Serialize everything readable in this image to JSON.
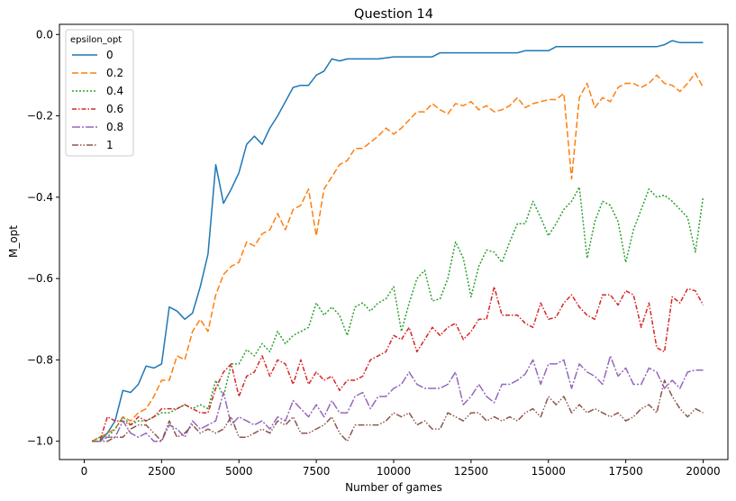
{
  "chart_data": {
    "type": "line",
    "title": "Question 14",
    "xlabel": "Number of games",
    "ylabel": "M_opt",
    "xlim": [
      -800,
      20800
    ],
    "ylim": [
      -1.045,
      0.025
    ],
    "xticks": [
      0,
      2500,
      5000,
      7500,
      10000,
      12500,
      15000,
      17500,
      20000
    ],
    "yticks": [
      0.0,
      -0.2,
      -0.4,
      -0.6,
      -0.8,
      -1.0
    ],
    "xtick_labels": [
      "0",
      "2500",
      "5000",
      "7500",
      "10000",
      "12500",
      "15000",
      "17500",
      "20000"
    ],
    "ytick_labels": [
      "0.0",
      "−0.2",
      "−0.4",
      "−0.6",
      "−0.8",
      "−1.0"
    ],
    "grid": false,
    "legend": {
      "title": "epsilon_opt",
      "placement": "top-left"
    },
    "series": [
      {
        "name": "0",
        "color": "#1f77b4",
        "dash": "solid",
        "x": [
          250,
          500,
          750,
          1000,
          1250,
          1500,
          1750,
          2000,
          2250,
          2500,
          2750,
          3000,
          3250,
          3500,
          3750,
          4000,
          4250,
          4500,
          4750,
          5000,
          5250,
          5500,
          5750,
          6000,
          6250,
          6500,
          6750,
          7000,
          7250,
          7500,
          7750,
          8000,
          8250,
          8500,
          9000,
          9500,
          10000,
          10500,
          11000,
          11250,
          11500,
          12000,
          12500,
          13000,
          13500,
          14000,
          14250,
          14500,
          15000,
          15250,
          15500,
          16000,
          16500,
          17000,
          17500,
          18000,
          18500,
          18750,
          19000,
          19250,
          19500,
          20000
        ],
        "y": [
          -1.0,
          -1.0,
          -0.98,
          -0.95,
          -0.875,
          -0.88,
          -0.86,
          -0.815,
          -0.82,
          -0.81,
          -0.67,
          -0.68,
          -0.7,
          -0.685,
          -0.62,
          -0.54,
          -0.32,
          -0.415,
          -0.38,
          -0.34,
          -0.27,
          -0.25,
          -0.27,
          -0.23,
          -0.2,
          -0.165,
          -0.13,
          -0.125,
          -0.125,
          -0.1,
          -0.09,
          -0.06,
          -0.065,
          -0.06,
          -0.06,
          -0.06,
          -0.055,
          -0.055,
          -0.055,
          -0.055,
          -0.045,
          -0.045,
          -0.045,
          -0.045,
          -0.045,
          -0.045,
          -0.04,
          -0.04,
          -0.04,
          -0.03,
          -0.03,
          -0.03,
          -0.03,
          -0.03,
          -0.03,
          -0.03,
          -0.03,
          -0.025,
          -0.015,
          -0.02,
          -0.02,
          -0.02
        ]
      },
      {
        "name": "0.2",
        "color": "#ff7f0e",
        "dash": "7,3",
        "x": [
          250,
          500,
          750,
          1000,
          1250,
          1500,
          1750,
          2000,
          2250,
          2500,
          2750,
          3000,
          3250,
          3500,
          3750,
          4000,
          4250,
          4500,
          4750,
          5000,
          5250,
          5500,
          5750,
          6000,
          6250,
          6500,
          6750,
          7000,
          7250,
          7500,
          7750,
          8000,
          8250,
          8500,
          8750,
          9000,
          9250,
          9500,
          9750,
          10000,
          10250,
          10500,
          10750,
          11000,
          11250,
          11500,
          11750,
          12000,
          12250,
          12500,
          12750,
          13000,
          13250,
          13500,
          13750,
          14000,
          14250,
          14500,
          14750,
          15000,
          15250,
          15500,
          15750,
          16000,
          16250,
          16500,
          16750,
          17000,
          17250,
          17500,
          17750,
          18000,
          18250,
          18500,
          18750,
          19000,
          19250,
          19500,
          19750,
          20000
        ],
        "y": [
          -1.0,
          -0.99,
          -0.98,
          -0.97,
          -0.94,
          -0.95,
          -0.93,
          -0.92,
          -0.89,
          -0.85,
          -0.85,
          -0.79,
          -0.8,
          -0.73,
          -0.7,
          -0.73,
          -0.64,
          -0.59,
          -0.57,
          -0.56,
          -0.51,
          -0.52,
          -0.49,
          -0.48,
          -0.44,
          -0.48,
          -0.43,
          -0.42,
          -0.38,
          -0.495,
          -0.38,
          -0.35,
          -0.32,
          -0.31,
          -0.28,
          -0.28,
          -0.265,
          -0.25,
          -0.23,
          -0.245,
          -0.23,
          -0.21,
          -0.19,
          -0.19,
          -0.17,
          -0.185,
          -0.195,
          -0.17,
          -0.175,
          -0.165,
          -0.185,
          -0.175,
          -0.19,
          -0.185,
          -0.175,
          -0.155,
          -0.18,
          -0.17,
          -0.165,
          -0.16,
          -0.16,
          -0.145,
          -0.355,
          -0.155,
          -0.12,
          -0.18,
          -0.155,
          -0.165,
          -0.13,
          -0.12,
          -0.12,
          -0.13,
          -0.12,
          -0.1,
          -0.12,
          -0.125,
          -0.14,
          -0.12,
          -0.095,
          -0.13
        ]
      },
      {
        "name": "0.4",
        "color": "#2ca02c",
        "dash": "2,2",
        "x": [
          250,
          500,
          750,
          1000,
          1250,
          1500,
          1750,
          2000,
          2250,
          2500,
          2750,
          3000,
          3250,
          3500,
          3750,
          4000,
          4250,
          4500,
          4750,
          5000,
          5250,
          5500,
          5750,
          6000,
          6250,
          6500,
          6750,
          7000,
          7250,
          7500,
          7750,
          8000,
          8250,
          8500,
          8750,
          9000,
          9250,
          9500,
          9750,
          10000,
          10250,
          10500,
          10750,
          11000,
          11250,
          11500,
          11750,
          12000,
          12250,
          12500,
          12750,
          13000,
          13250,
          13500,
          13750,
          14000,
          14250,
          14500,
          14750,
          15000,
          15250,
          15500,
          15750,
          16000,
          16250,
          16500,
          16750,
          17000,
          17250,
          17500,
          17750,
          18000,
          18250,
          18500,
          18750,
          19000,
          19250,
          19500,
          19750,
          20000
        ],
        "y": [
          -1.0,
          -0.99,
          -0.99,
          -0.97,
          -0.94,
          -0.96,
          -0.95,
          -0.95,
          -0.94,
          -0.93,
          -0.93,
          -0.92,
          -0.91,
          -0.92,
          -0.91,
          -0.92,
          -0.85,
          -0.89,
          -0.81,
          -0.81,
          -0.775,
          -0.79,
          -0.76,
          -0.78,
          -0.73,
          -0.76,
          -0.74,
          -0.73,
          -0.72,
          -0.66,
          -0.69,
          -0.67,
          -0.69,
          -0.74,
          -0.67,
          -0.66,
          -0.68,
          -0.66,
          -0.65,
          -0.62,
          -0.73,
          -0.66,
          -0.6,
          -0.58,
          -0.655,
          -0.65,
          -0.6,
          -0.51,
          -0.55,
          -0.645,
          -0.57,
          -0.53,
          -0.535,
          -0.56,
          -0.51,
          -0.465,
          -0.465,
          -0.41,
          -0.45,
          -0.495,
          -0.465,
          -0.43,
          -0.41,
          -0.375,
          -0.55,
          -0.46,
          -0.41,
          -0.42,
          -0.46,
          -0.56,
          -0.48,
          -0.43,
          -0.38,
          -0.4,
          -0.395,
          -0.41,
          -0.43,
          -0.45,
          -0.535,
          -0.4
        ]
      },
      {
        "name": "0.6",
        "color": "#d62728",
        "dash": "5,2,1.5,2",
        "x": [
          250,
          500,
          750,
          1000,
          1250,
          1500,
          1750,
          2000,
          2250,
          2500,
          2750,
          3000,
          3250,
          3500,
          3750,
          4000,
          4250,
          4500,
          4750,
          5000,
          5250,
          5500,
          5750,
          6000,
          6250,
          6500,
          6750,
          7000,
          7250,
          7500,
          7750,
          8000,
          8250,
          8500,
          8750,
          9000,
          9250,
          9500,
          9750,
          10000,
          10250,
          10500,
          10750,
          11000,
          11250,
          11500,
          11750,
          12000,
          12250,
          12500,
          12750,
          13000,
          13250,
          13500,
          13750,
          14000,
          14250,
          14500,
          14750,
          15000,
          15250,
          15500,
          15750,
          16000,
          16250,
          16500,
          16750,
          17000,
          17250,
          17500,
          17750,
          18000,
          18250,
          18500,
          18750,
          19000,
          19250,
          19500,
          19750,
          20000
        ],
        "y": [
          -1.0,
          -1.0,
          -0.94,
          -0.95,
          -0.95,
          -0.96,
          -0.94,
          -0.95,
          -0.94,
          -0.92,
          -0.92,
          -0.92,
          -0.91,
          -0.92,
          -0.93,
          -0.93,
          -0.87,
          -0.83,
          -0.81,
          -0.89,
          -0.84,
          -0.83,
          -0.79,
          -0.84,
          -0.8,
          -0.81,
          -0.86,
          -0.8,
          -0.86,
          -0.83,
          -0.85,
          -0.84,
          -0.875,
          -0.85,
          -0.85,
          -0.84,
          -0.8,
          -0.79,
          -0.78,
          -0.74,
          -0.75,
          -0.72,
          -0.78,
          -0.75,
          -0.72,
          -0.74,
          -0.72,
          -0.71,
          -0.75,
          -0.73,
          -0.7,
          -0.7,
          -0.62,
          -0.69,
          -0.69,
          -0.69,
          -0.71,
          -0.72,
          -0.66,
          -0.7,
          -0.695,
          -0.66,
          -0.64,
          -0.67,
          -0.69,
          -0.7,
          -0.64,
          -0.64,
          -0.665,
          -0.63,
          -0.64,
          -0.72,
          -0.66,
          -0.77,
          -0.78,
          -0.645,
          -0.66,
          -0.625,
          -0.63,
          -0.665
        ]
      },
      {
        "name": "0.8",
        "color": "#9467bd",
        "dash": "9,2,2,2",
        "x": [
          250,
          500,
          750,
          1000,
          1250,
          1500,
          1750,
          2000,
          2250,
          2500,
          2750,
          3000,
          3250,
          3500,
          3750,
          4000,
          4250,
          4500,
          4750,
          5000,
          5250,
          5500,
          5750,
          6000,
          6250,
          6500,
          6750,
          7000,
          7250,
          7500,
          7750,
          8000,
          8250,
          8500,
          8750,
          9000,
          9250,
          9500,
          9750,
          10000,
          10250,
          10500,
          10750,
          11000,
          11250,
          11500,
          11750,
          12000,
          12250,
          12500,
          12750,
          13000,
          13250,
          13500,
          13750,
          14000,
          14250,
          14500,
          14750,
          15000,
          15250,
          15500,
          15750,
          16000,
          16250,
          16500,
          16750,
          17000,
          17250,
          17500,
          17750,
          18000,
          18250,
          18500,
          18750,
          19000,
          19250,
          19500,
          19750,
          20000
        ],
        "y": [
          -1.0,
          -1.0,
          -0.99,
          -0.99,
          -0.95,
          -0.98,
          -0.99,
          -0.98,
          -1.0,
          -1.0,
          -0.96,
          -0.97,
          -0.99,
          -0.95,
          -0.97,
          -0.96,
          -0.95,
          -0.88,
          -0.96,
          -0.94,
          -0.95,
          -0.96,
          -0.95,
          -0.97,
          -0.94,
          -0.95,
          -0.9,
          -0.92,
          -0.94,
          -0.91,
          -0.94,
          -0.9,
          -0.93,
          -0.93,
          -0.89,
          -0.88,
          -0.92,
          -0.89,
          -0.89,
          -0.87,
          -0.86,
          -0.83,
          -0.86,
          -0.87,
          -0.87,
          -0.87,
          -0.86,
          -0.83,
          -0.91,
          -0.89,
          -0.86,
          -0.89,
          -0.905,
          -0.86,
          -0.86,
          -0.85,
          -0.835,
          -0.8,
          -0.86,
          -0.81,
          -0.81,
          -0.8,
          -0.87,
          -0.81,
          -0.83,
          -0.84,
          -0.86,
          -0.79,
          -0.84,
          -0.82,
          -0.86,
          -0.86,
          -0.82,
          -0.83,
          -0.87,
          -0.85,
          -0.87,
          -0.83,
          -0.825,
          -0.825
        ]
      },
      {
        "name": "1",
        "color": "#8c564b",
        "dash": "7,2,1.5,2,1.5,2",
        "x": [
          250,
          500,
          750,
          1000,
          1250,
          1500,
          1750,
          2000,
          2250,
          2500,
          2750,
          3000,
          3250,
          3500,
          3750,
          4000,
          4250,
          4500,
          4750,
          5000,
          5250,
          5500,
          5750,
          6000,
          6250,
          6500,
          6750,
          7000,
          7250,
          7500,
          7750,
          8000,
          8250,
          8500,
          8750,
          9000,
          9250,
          9500,
          9750,
          10000,
          10250,
          10500,
          10750,
          11000,
          11250,
          11500,
          11750,
          12000,
          12250,
          12500,
          12750,
          13000,
          13250,
          13500,
          13750,
          14000,
          14250,
          14500,
          14750,
          15000,
          15250,
          15500,
          15750,
          16000,
          16250,
          16500,
          16750,
          17000,
          17250,
          17500,
          17750,
          18000,
          18250,
          18500,
          18750,
          19000,
          19250,
          19500,
          19750,
          20000
        ],
        "y": [
          -1.0,
          -1.0,
          -1.0,
          -0.99,
          -0.99,
          -0.97,
          -0.96,
          -0.96,
          -0.98,
          -1.0,
          -0.95,
          -0.99,
          -0.98,
          -0.96,
          -0.98,
          -0.97,
          -0.98,
          -0.97,
          -0.94,
          -0.99,
          -0.99,
          -0.98,
          -0.97,
          -0.98,
          -0.95,
          -0.96,
          -0.94,
          -0.98,
          -0.98,
          -0.97,
          -0.96,
          -0.94,
          -0.98,
          -1.0,
          -0.96,
          -0.96,
          -0.96,
          -0.96,
          -0.95,
          -0.93,
          -0.94,
          -0.93,
          -0.96,
          -0.95,
          -0.97,
          -0.97,
          -0.93,
          -0.94,
          -0.95,
          -0.93,
          -0.93,
          -0.95,
          -0.94,
          -0.95,
          -0.94,
          -0.95,
          -0.93,
          -0.92,
          -0.94,
          -0.89,
          -0.91,
          -0.89,
          -0.93,
          -0.91,
          -0.93,
          -0.92,
          -0.93,
          -0.94,
          -0.93,
          -0.95,
          -0.94,
          -0.92,
          -0.91,
          -0.93,
          -0.85,
          -0.89,
          -0.92,
          -0.94,
          -0.92,
          -0.93
        ]
      }
    ]
  }
}
